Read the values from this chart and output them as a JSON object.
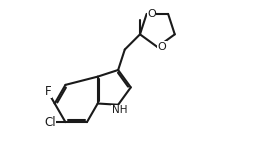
{
  "background_color": "#ffffff",
  "line_color": "#1a1a1a",
  "line_width": 1.5,
  "font_size": 8.5,
  "xlim": [
    0,
    10
  ],
  "ylim": [
    0,
    6
  ],
  "bl": 0.8
}
